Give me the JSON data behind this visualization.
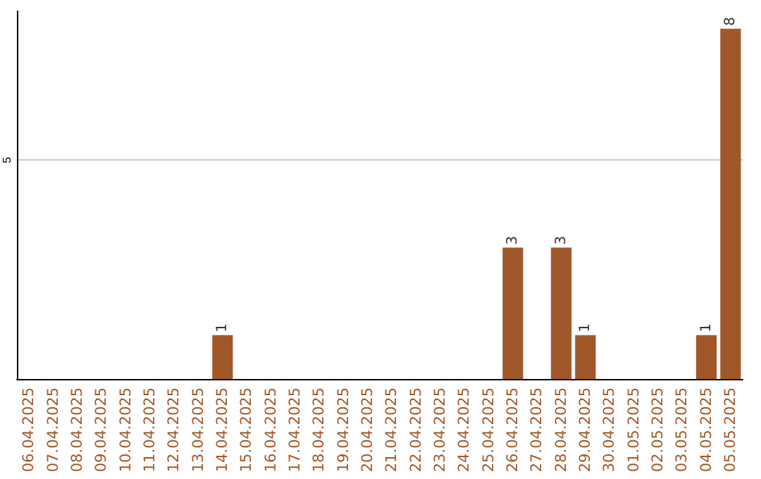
{
  "chart_data": {
    "type": "bar",
    "categories": [
      "06.04.2025",
      "07.04.2025",
      "08.04.2025",
      "09.04.2025",
      "10.04.2025",
      "11.04.2025",
      "12.04.2025",
      "13.04.2025",
      "14.04.2025",
      "15.04.2025",
      "16.04.2025",
      "17.04.2025",
      "18.04.2025",
      "19.04.2025",
      "20.04.2025",
      "21.04.2025",
      "22.04.2025",
      "23.04.2025",
      "24.04.2025",
      "25.04.2025",
      "26.04.2025",
      "27.04.2025",
      "28.04.2025",
      "29.04.2025",
      "30.04.2025",
      "01.05.2025",
      "02.05.2025",
      "03.05.2025",
      "04.05.2025",
      "05.05.2025"
    ],
    "values": [
      0,
      0,
      0,
      0,
      0,
      0,
      0,
      0,
      1,
      0,
      0,
      0,
      0,
      0,
      0,
      0,
      0,
      0,
      0,
      0,
      3,
      0,
      3,
      1,
      0,
      0,
      0,
      0,
      1,
      8
    ],
    "value_labels": [
      null,
      null,
      null,
      null,
      null,
      null,
      null,
      null,
      "1",
      null,
      null,
      null,
      null,
      null,
      null,
      null,
      null,
      null,
      null,
      null,
      "3",
      null,
      "3",
      "1",
      null,
      null,
      null,
      null,
      "1",
      "8"
    ],
    "color": "#a0582a",
    "ylim": [
      0,
      8.4
    ],
    "yticks": [
      5
    ],
    "grid": "y"
  }
}
